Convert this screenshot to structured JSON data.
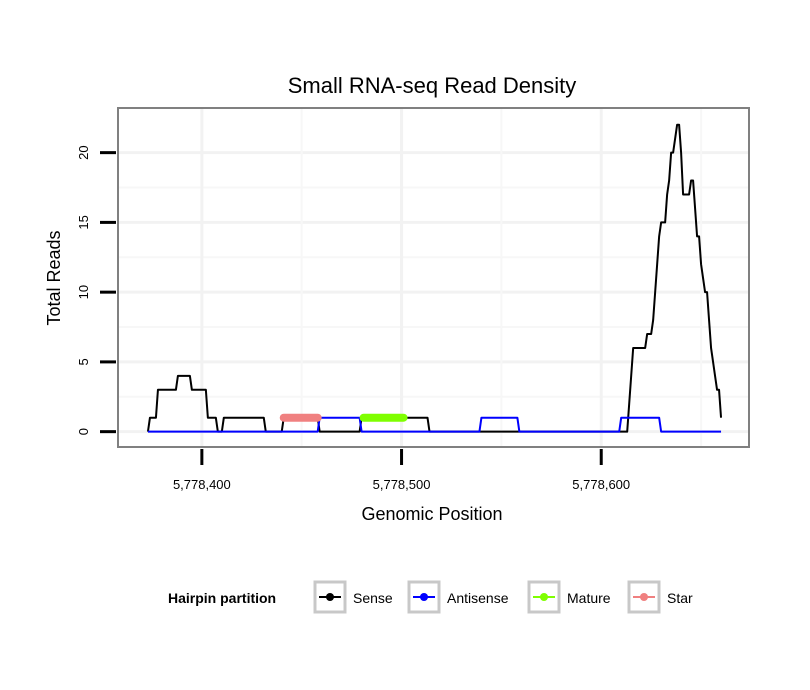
{
  "chart_data": {
    "type": "line",
    "title": "Small RNA-seq Read Density",
    "xlabel": "Genomic Position",
    "ylabel": "Total Reads",
    "xlim": [
      5778358,
      5778674
    ],
    "ylim": [
      -1.1,
      23.2
    ],
    "x_ticks": [
      5778400,
      5778500,
      5778600
    ],
    "x_tick_labels": [
      "5,778,400",
      "5,778,500",
      "5,778,600"
    ],
    "y_ticks": [
      0,
      5,
      10,
      15,
      20
    ],
    "y_tick_labels": [
      "0",
      "5",
      "10",
      "15",
      "20"
    ],
    "grid": true,
    "legend": {
      "title": "Hairpin partition",
      "placement": "bottom",
      "entries": [
        "Sense",
        "Antisense",
        "Mature",
        "Star"
      ]
    },
    "series": [
      {
        "name": "Sense",
        "color": "#000000",
        "x": [
          5778373,
          5778374,
          5778377,
          5778378,
          5778387,
          5778388,
          5778394,
          5778395,
          5778402,
          5778403,
          5778407,
          5778408,
          5778410,
          5778411,
          5778431,
          5778432,
          5778440,
          5778441,
          5778458,
          5778459,
          5778479,
          5778480,
          5778513,
          5778514,
          5778613,
          5778614,
          5778615,
          5778616,
          5778622,
          5778623,
          5778625,
          5778626,
          5778627,
          5778628,
          5778629,
          5778630,
          5778632,
          5778633,
          5778634,
          5778635,
          5778636,
          5778637,
          5778638,
          5778639,
          5778640,
          5778641,
          5778642,
          5778643,
          5778644,
          5778645,
          5778646,
          5778647,
          5778648,
          5778649,
          5778650,
          5778651,
          5778652,
          5778653,
          5778654,
          5778655,
          5778656,
          5778657,
          5778658,
          5778659,
          5778660
        ],
        "y": [
          0,
          1,
          1,
          3,
          3,
          4,
          4,
          3,
          3,
          1,
          1,
          0,
          0,
          1,
          1,
          0,
          0,
          1,
          1,
          0,
          0,
          1,
          1,
          0,
          0,
          2,
          4,
          6,
          6,
          7,
          7,
          8,
          10,
          12,
          14,
          15,
          15,
          17,
          18,
          20,
          20,
          21,
          22,
          22,
          20,
          17,
          17,
          17,
          17,
          18,
          18,
          16,
          14,
          14,
          12,
          11,
          10,
          10,
          8,
          6,
          5,
          4,
          3,
          3,
          1
        ]
      },
      {
        "name": "Antisense",
        "color": "#0000ff",
        "x": [
          5778373,
          5778458,
          5778459,
          5778479,
          5778480,
          5778539,
          5778540,
          5778558,
          5778559,
          5778609,
          5778610,
          5778629,
          5778630,
          5778660
        ],
        "y": [
          0,
          0,
          1,
          1,
          0,
          0,
          1,
          1,
          0,
          0,
          1,
          1,
          0,
          0
        ]
      },
      {
        "name": "Mature",
        "color": "#7fff00",
        "x": [
          5778481,
          5778501
        ],
        "y": [
          1,
          1
        ]
      },
      {
        "name": "Star",
        "color": "#f08080",
        "x": [
          5778441,
          5778458
        ],
        "y": [
          1,
          1
        ]
      }
    ]
  }
}
